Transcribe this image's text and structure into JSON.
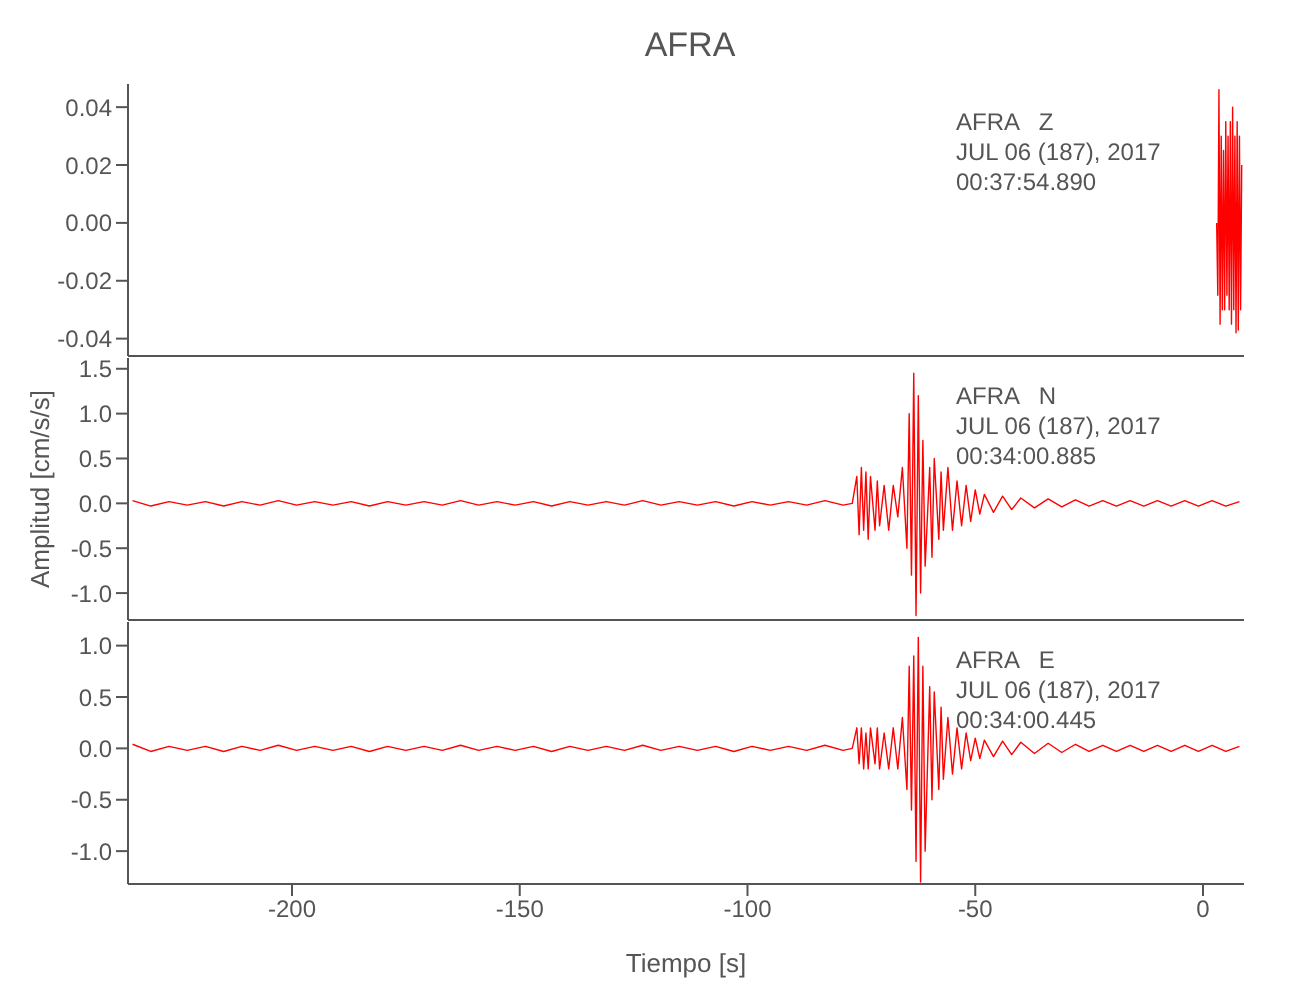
{
  "chart_data": [
    {
      "type": "line",
      "title": "AFRA",
      "annotations": [
        "AFRA   Z",
        "JUL 06 (187), 2017",
        "00:37:54.890"
      ],
      "color": "#ff0000",
      "tick_labels": "y",
      "xlim": [
        -236,
        9
      ],
      "xticks": [
        -200,
        -150,
        -100,
        -50,
        0
      ],
      "ylim": [
        -0.046,
        0.048
      ],
      "yticks": [
        {
          "value": -0.04,
          "label": "-0.04"
        },
        {
          "value": -0.02,
          "label": "-0.02"
        },
        {
          "value": 0,
          "label": "0.00"
        },
        {
          "value": 0.02,
          "label": "0.02"
        },
        {
          "value": 0.04,
          "label": "0.04"
        }
      ],
      "x": [
        3,
        3.25,
        3.5,
        3.75,
        4,
        4.25,
        4.5,
        4.75,
        5,
        5.25,
        5.5,
        5.75,
        6,
        6.25,
        6.5,
        6.75,
        7,
        7.25,
        7.5,
        7.75,
        8,
        8.25,
        8.5
      ],
      "values": [
        0,
        -0.025,
        0.046,
        -0.035,
        0.03,
        -0.03,
        0.025,
        -0.03,
        0.035,
        -0.025,
        0.03,
        -0.03,
        0.035,
        -0.035,
        0.04,
        -0.03,
        0.03,
        -0.038,
        0.035,
        -0.037,
        0.03,
        -0.03,
        0.02
      ]
    },
    {
      "type": "line",
      "ylabel": "Amplitud [cm/s/s]",
      "annotations": [
        "AFRA   N",
        "JUL 06 (187), 2017",
        "00:34:00.885"
      ],
      "color": "#ff0000",
      "tick_labels": "y",
      "xlim": [
        -236,
        9
      ],
      "xticks": [
        -200,
        -150,
        -100,
        -50,
        0
      ],
      "ylim": [
        -1.3,
        1.62
      ],
      "yticks": [
        {
          "value": -1,
          "label": "-1.0"
        },
        {
          "value": -0.5,
          "label": "-0.5"
        },
        {
          "value": 0,
          "label": "0.0"
        },
        {
          "value": 0.5,
          "label": "0.5"
        },
        {
          "value": 1,
          "label": "1.0"
        },
        {
          "value": 1.5,
          "label": "1.5"
        }
      ],
      "x": [
        -235,
        -231,
        -227,
        -223,
        -219,
        -215,
        -211,
        -207,
        -203,
        -199,
        -195,
        -191,
        -187,
        -183,
        -179,
        -175,
        -171,
        -167,
        -163,
        -159,
        -155,
        -151,
        -147,
        -143,
        -139,
        -135,
        -131,
        -127,
        -123,
        -119,
        -115,
        -111,
        -107,
        -103,
        -99,
        -95,
        -91,
        -87,
        -83,
        -79,
        -77,
        -76,
        -75.5,
        -75,
        -74.5,
        -74,
        -73.5,
        -73,
        -72,
        -71.5,
        -71,
        -70,
        -69,
        -68,
        -67,
        -66,
        -65,
        -64.5,
        -64,
        -63.5,
        -63,
        -62.5,
        -62,
        -61.5,
        -61,
        -60,
        -59.5,
        -59,
        -58,
        -57.5,
        -57,
        -56,
        -55,
        -54,
        -53,
        -52,
        -51,
        -50,
        -49,
        -48,
        -46,
        -44,
        -42,
        -40,
        -37,
        -34,
        -31,
        -28,
        -25,
        -22,
        -19,
        -16,
        -13,
        -10,
        -7,
        -4,
        -1,
        2,
        5,
        8
      ],
      "values": [
        0.03,
        -0.03,
        0.02,
        -0.02,
        0.02,
        -0.03,
        0.02,
        -0.02,
        0.03,
        -0.02,
        0.02,
        -0.02,
        0.02,
        -0.03,
        0.02,
        -0.02,
        0.02,
        -0.02,
        0.03,
        -0.02,
        0.02,
        -0.02,
        0.02,
        -0.03,
        0.02,
        -0.02,
        0.02,
        -0.02,
        0.03,
        -0.02,
        0.02,
        -0.02,
        0.02,
        -0.03,
        0.02,
        -0.02,
        0.02,
        -0.02,
        0.03,
        -0.02,
        0,
        0.3,
        -0.35,
        0.4,
        -0.3,
        0.35,
        -0.4,
        0.3,
        -0.3,
        0.25,
        -0.25,
        0.2,
        -0.3,
        0.2,
        -0.15,
        0.4,
        -0.5,
        1,
        -0.8,
        1.45,
        -1.25,
        1.2,
        -1,
        0.7,
        -0.7,
        0.4,
        -0.6,
        0.5,
        -0.4,
        0.35,
        -0.3,
        0.4,
        -0.3,
        0.25,
        -0.25,
        0.2,
        -0.2,
        0.15,
        -0.12,
        0.1,
        -0.1,
        0.08,
        -0.07,
        0.06,
        -0.05,
        0.05,
        -0.04,
        0.04,
        -0.03,
        0.03,
        -0.03,
        0.03,
        -0.03,
        0.03,
        -0.03,
        0.03,
        -0.03,
        0.03,
        -0.03,
        0.02
      ]
    },
    {
      "type": "line",
      "xlabel": "Tiempo [s]",
      "annotations": [
        "AFRA   E",
        "JUL 06 (187), 2017",
        "00:34:00.445"
      ],
      "color": "#ff0000",
      "xlim": [
        -236,
        9
      ],
      "xticks": [
        -200,
        -150,
        -100,
        -50,
        0
      ],
      "ylim": [
        -1.32,
        1.23
      ],
      "yticks": [
        {
          "value": -1,
          "label": "-1.0"
        },
        {
          "value": -0.5,
          "label": "-0.5"
        },
        {
          "value": 0,
          "label": "0.0"
        },
        {
          "value": 0.5,
          "label": "0.5"
        },
        {
          "value": 1,
          "label": "1.0"
        }
      ],
      "x": [
        -235,
        -231,
        -227,
        -223,
        -219,
        -215,
        -211,
        -207,
        -203,
        -199,
        -195,
        -191,
        -187,
        -183,
        -179,
        -175,
        -171,
        -167,
        -163,
        -159,
        -155,
        -151,
        -147,
        -143,
        -139,
        -135,
        -131,
        -127,
        -123,
        -119,
        -115,
        -111,
        -107,
        -103,
        -99,
        -95,
        -91,
        -87,
        -83,
        -79,
        -77,
        -76,
        -75.5,
        -75,
        -74.5,
        -74,
        -73.5,
        -73,
        -72,
        -71.5,
        -71,
        -70,
        -69,
        -68,
        -67,
        -66,
        -65,
        -64.5,
        -64,
        -63.5,
        -63,
        -62.5,
        -62,
        -61.5,
        -61,
        -60,
        -59.5,
        -59,
        -58,
        -57.5,
        -57,
        -56,
        -55,
        -54,
        -53,
        -52,
        -51,
        -50,
        -49,
        -48,
        -46,
        -44,
        -42,
        -40,
        -37,
        -34,
        -31,
        -28,
        -25,
        -22,
        -19,
        -16,
        -13,
        -10,
        -7,
        -4,
        -1,
        2,
        5,
        8
      ],
      "values": [
        0.04,
        -0.03,
        0.02,
        -0.02,
        0.02,
        -0.03,
        0.02,
        -0.02,
        0.03,
        -0.02,
        0.02,
        -0.02,
        0.02,
        -0.03,
        0.02,
        -0.02,
        0.02,
        -0.02,
        0.03,
        -0.02,
        0.02,
        -0.02,
        0.02,
        -0.03,
        0.02,
        -0.02,
        0.02,
        -0.02,
        0.03,
        -0.02,
        0.02,
        -0.02,
        0.02,
        -0.03,
        0.02,
        -0.02,
        0.02,
        -0.02,
        0.03,
        -0.02,
        0,
        0.2,
        -0.15,
        0.2,
        -0.2,
        0.15,
        -0.2,
        0.2,
        -0.15,
        0.2,
        -0.2,
        0.15,
        -0.2,
        0.2,
        -0.2,
        0.3,
        -0.4,
        0.8,
        -0.6,
        0.9,
        -1.1,
        1.08,
        -1.3,
        0.8,
        -1,
        0.6,
        -0.5,
        0.55,
        -0.4,
        0.4,
        -0.3,
        0.3,
        -0.25,
        0.2,
        -0.2,
        0.15,
        -0.12,
        0.1,
        -0.1,
        0.08,
        -0.08,
        0.07,
        -0.06,
        0.06,
        -0.05,
        0.05,
        -0.04,
        0.04,
        -0.03,
        0.03,
        -0.03,
        0.03,
        -0.03,
        0.03,
        -0.03,
        0.03,
        -0.03,
        0.03,
        -0.03,
        0.02
      ]
    }
  ]
}
